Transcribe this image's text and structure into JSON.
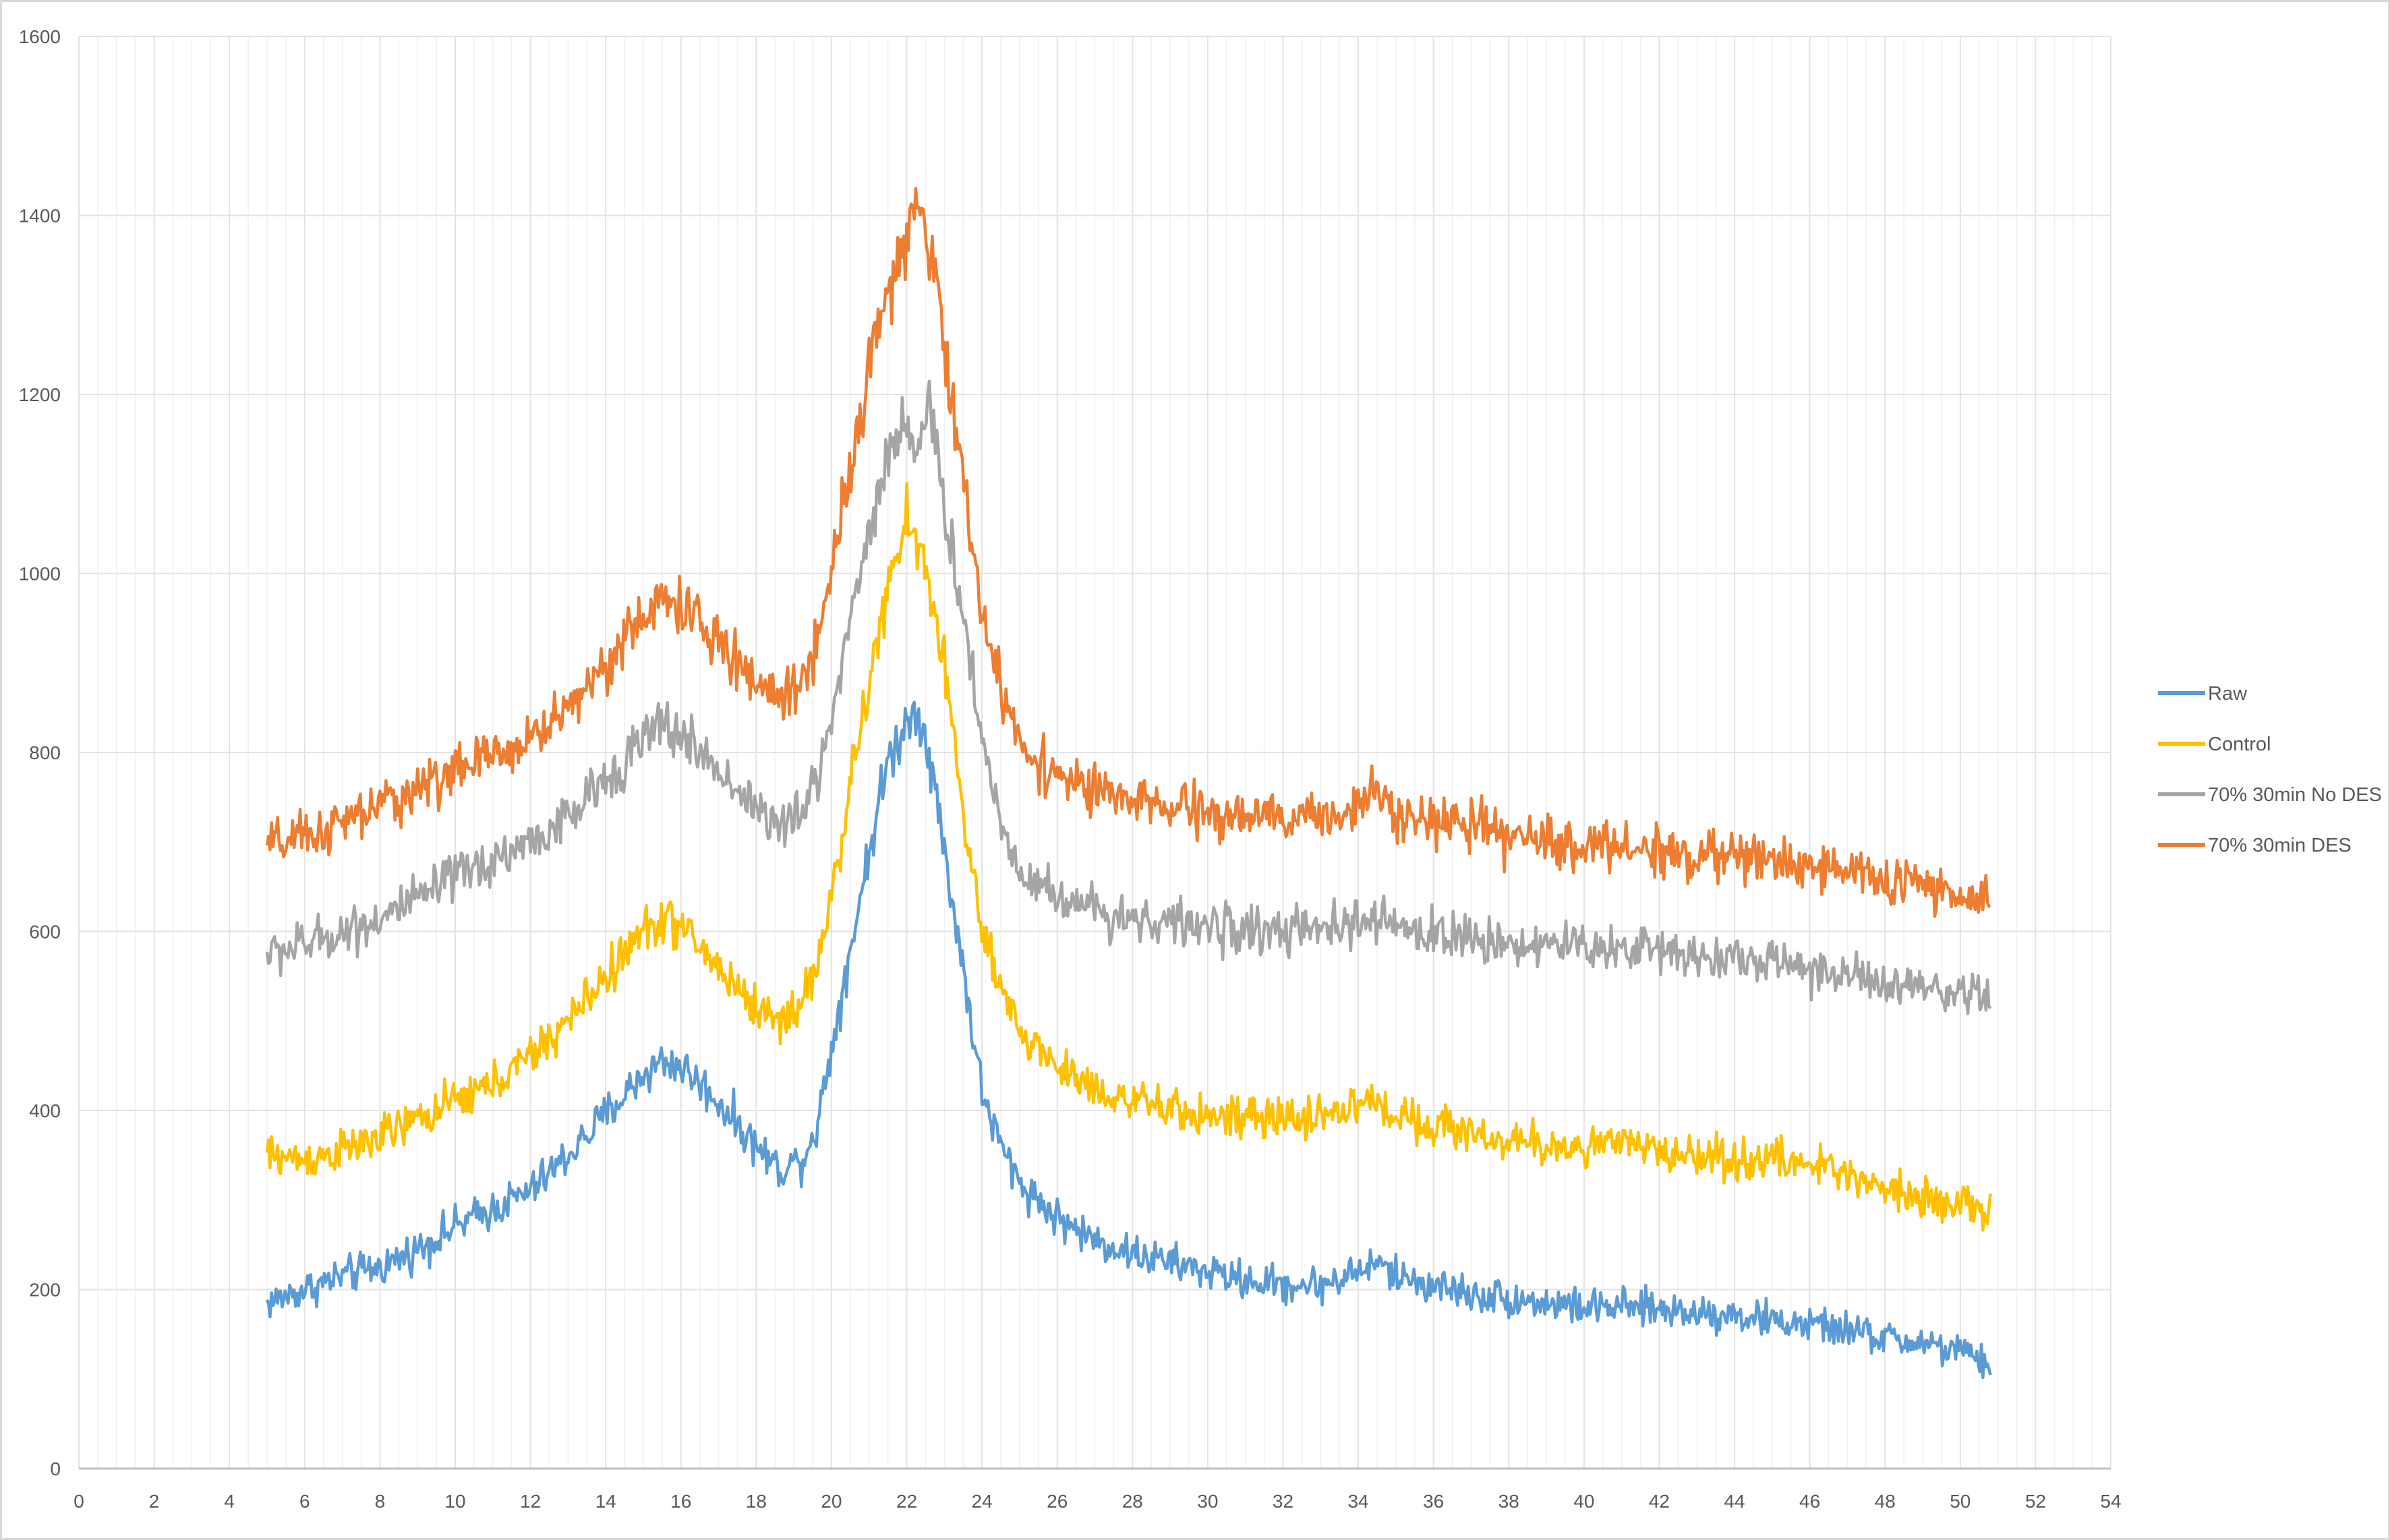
{
  "chart_data": {
    "type": "line",
    "title": "",
    "xlabel": "",
    "ylabel": "",
    "xlim": [
      0,
      54
    ],
    "ylim": [
      0,
      1600
    ],
    "x_ticks": [
      0,
      2,
      4,
      6,
      8,
      10,
      12,
      14,
      16,
      18,
      20,
      22,
      24,
      26,
      28,
      30,
      32,
      34,
      36,
      38,
      40,
      42,
      44,
      46,
      48,
      50,
      52,
      54
    ],
    "y_ticks": [
      0,
      200,
      400,
      600,
      800,
      1000,
      1200,
      1400,
      1600
    ],
    "grid": true,
    "legend_position": "right",
    "series": [
      {
        "name": "Raw",
        "color": "#5b9bd5",
        "points": [
          [
            5,
            185
          ],
          [
            6,
            200
          ],
          [
            7,
            215
          ],
          [
            8,
            225
          ],
          [
            9,
            245
          ],
          [
            10,
            270
          ],
          [
            11,
            290
          ],
          [
            12,
            310
          ],
          [
            13,
            350
          ],
          [
            14,
            395
          ],
          [
            15,
            440
          ],
          [
            15.5,
            455
          ],
          [
            16,
            450
          ],
          [
            17,
            410
          ],
          [
            18,
            360
          ],
          [
            18.6,
            335
          ],
          [
            19.2,
            345
          ],
          [
            19.6,
            380
          ],
          [
            20,
            470
          ],
          [
            20.5,
            580
          ],
          [
            21,
            690
          ],
          [
            21.5,
            790
          ],
          [
            22,
            835
          ],
          [
            22.3,
            850
          ],
          [
            22.6,
            800
          ],
          [
            23,
            690
          ],
          [
            23.5,
            560
          ],
          [
            24,
            420
          ],
          [
            24.5,
            360
          ],
          [
            25,
            320
          ],
          [
            26,
            280
          ],
          [
            27,
            255
          ],
          [
            28,
            240
          ],
          [
            29,
            230
          ],
          [
            30,
            220
          ],
          [
            31,
            210
          ],
          [
            32,
            205
          ],
          [
            33,
            205
          ],
          [
            34,
            220
          ],
          [
            34.5,
            230
          ],
          [
            35,
            215
          ],
          [
            36,
            205
          ],
          [
            37,
            195
          ],
          [
            38,
            190
          ],
          [
            39,
            185
          ],
          [
            40,
            180
          ],
          [
            41,
            180
          ],
          [
            42,
            178
          ],
          [
            43,
            175
          ],
          [
            44,
            172
          ],
          [
            45,
            165
          ],
          [
            46,
            160
          ],
          [
            47,
            155
          ],
          [
            48,
            145
          ],
          [
            49,
            140
          ],
          [
            50,
            130
          ],
          [
            50.8,
            115
          ]
        ]
      },
      {
        "name": "Control",
        "color": "#ffc000",
        "points": [
          [
            5,
            350
          ],
          [
            6,
            345
          ],
          [
            7,
            355
          ],
          [
            8,
            370
          ],
          [
            9,
            390
          ],
          [
            10,
            410
          ],
          [
            11,
            430
          ],
          [
            12,
            460
          ],
          [
            13,
            500
          ],
          [
            14,
            550
          ],
          [
            15,
            600
          ],
          [
            15.5,
            615
          ],
          [
            16,
            605
          ],
          [
            17,
            560
          ],
          [
            18,
            515
          ],
          [
            18.6,
            500
          ],
          [
            19.2,
            520
          ],
          [
            19.6,
            560
          ],
          [
            20,
            640
          ],
          [
            20.5,
            760
          ],
          [
            21,
            880
          ],
          [
            21.5,
            980
          ],
          [
            22,
            1060
          ],
          [
            22.3,
            1030
          ],
          [
            22.6,
            990
          ],
          [
            23,
            900
          ],
          [
            23.5,
            730
          ],
          [
            24,
            600
          ],
          [
            24.5,
            530
          ],
          [
            25,
            490
          ],
          [
            26,
            450
          ],
          [
            27,
            425
          ],
          [
            28,
            410
          ],
          [
            29,
            400
          ],
          [
            30,
            395
          ],
          [
            31,
            390
          ],
          [
            32,
            390
          ],
          [
            33,
            395
          ],
          [
            34,
            405
          ],
          [
            34.5,
            410
          ],
          [
            35,
            395
          ],
          [
            36,
            385
          ],
          [
            37,
            375
          ],
          [
            38,
            365
          ],
          [
            39,
            360
          ],
          [
            40,
            360
          ],
          [
            41,
            362
          ],
          [
            42,
            355
          ],
          [
            43,
            350
          ],
          [
            44,
            345
          ],
          [
            45,
            345
          ],
          [
            46,
            340
          ],
          [
            47,
            330
          ],
          [
            48,
            315
          ],
          [
            49,
            305
          ],
          [
            50,
            295
          ],
          [
            50.8,
            285
          ]
        ]
      },
      {
        "name": "70% 30min No DES",
        "color": "#a5a5a5",
        "points": [
          [
            5,
            575
          ],
          [
            6,
            585
          ],
          [
            7,
            600
          ],
          [
            8,
            615
          ],
          [
            9,
            635
          ],
          [
            10,
            660
          ],
          [
            11,
            680
          ],
          [
            12,
            700
          ],
          [
            13,
            725
          ],
          [
            14,
            770
          ],
          [
            15,
            815
          ],
          [
            15.5,
            830
          ],
          [
            16,
            820
          ],
          [
            17,
            780
          ],
          [
            18,
            740
          ],
          [
            18.6,
            715
          ],
          [
            19.2,
            730
          ],
          [
            19.6,
            770
          ],
          [
            20,
            840
          ],
          [
            20.5,
            950
          ],
          [
            21,
            1050
          ],
          [
            21.5,
            1130
          ],
          [
            22,
            1175
          ],
          [
            22.3,
            1140
          ],
          [
            22.6,
            1180
          ],
          [
            23,
            1080
          ],
          [
            23.5,
            950
          ],
          [
            24,
            820
          ],
          [
            24.5,
            720
          ],
          [
            25,
            670
          ],
          [
            26,
            640
          ],
          [
            27,
            625
          ],
          [
            28,
            615
          ],
          [
            29,
            610
          ],
          [
            30,
            605
          ],
          [
            31,
            602
          ],
          [
            32,
            600
          ],
          [
            33,
            600
          ],
          [
            34,
            610
          ],
          [
            34.5,
            612
          ],
          [
            35,
            605
          ],
          [
            36,
            598
          ],
          [
            37,
            592
          ],
          [
            38,
            588
          ],
          [
            39,
            585
          ],
          [
            40,
            583
          ],
          [
            41,
            582
          ],
          [
            42,
            580
          ],
          [
            43,
            575
          ],
          [
            44,
            570
          ],
          [
            45,
            565
          ],
          [
            46,
            560
          ],
          [
            47,
            550
          ],
          [
            48,
            540
          ],
          [
            49,
            533
          ],
          [
            50,
            525
          ],
          [
            50.8,
            525
          ]
        ]
      },
      {
        "name": "70% 30min DES",
        "color": "#ed7d31",
        "points": [
          [
            5,
            695
          ],
          [
            6,
            705
          ],
          [
            7,
            720
          ],
          [
            8,
            740
          ],
          [
            9,
            760
          ],
          [
            10,
            780
          ],
          [
            11,
            795
          ],
          [
            12,
            815
          ],
          [
            13,
            850
          ],
          [
            14,
            900
          ],
          [
            15,
            950
          ],
          [
            15.5,
            970
          ],
          [
            16,
            965
          ],
          [
            17,
            920
          ],
          [
            18,
            880
          ],
          [
            18.6,
            860
          ],
          [
            19.2,
            880
          ],
          [
            19.6,
            920
          ],
          [
            20,
            1010
          ],
          [
            20.5,
            1120
          ],
          [
            21,
            1230
          ],
          [
            21.5,
            1320
          ],
          [
            22,
            1370
          ],
          [
            22.3,
            1400
          ],
          [
            22.6,
            1370
          ],
          [
            23,
            1260
          ],
          [
            23.5,
            1100
          ],
          [
            24,
            960
          ],
          [
            24.5,
            870
          ],
          [
            25,
            810
          ],
          [
            26,
            775
          ],
          [
            27,
            755
          ],
          [
            28,
            745
          ],
          [
            29,
            738
          ],
          [
            30,
            732
          ],
          [
            31,
            728
          ],
          [
            32,
            725
          ],
          [
            33,
            728
          ],
          [
            34,
            740
          ],
          [
            34.5,
            755
          ],
          [
            35,
            740
          ],
          [
            36,
            725
          ],
          [
            37,
            715
          ],
          [
            38,
            705
          ],
          [
            39,
            700
          ],
          [
            40,
            697
          ],
          [
            41,
            695
          ],
          [
            42,
            690
          ],
          [
            43,
            685
          ],
          [
            44,
            683
          ],
          [
            45,
            680
          ],
          [
            46,
            675
          ],
          [
            47,
            668
          ],
          [
            48,
            658
          ],
          [
            49,
            650
          ],
          [
            50,
            640
          ],
          [
            50.8,
            625
          ]
        ]
      }
    ]
  }
}
